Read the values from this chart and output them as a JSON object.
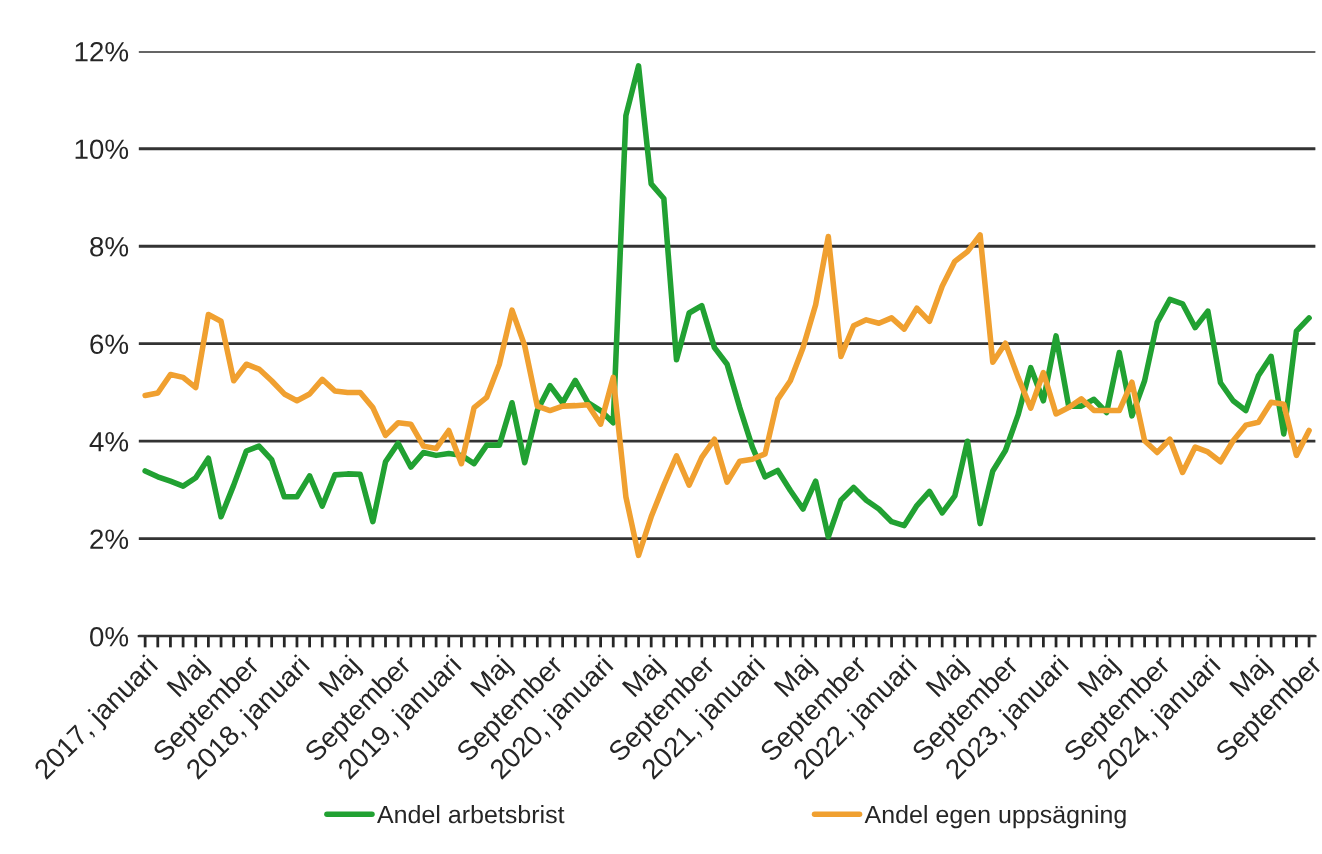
{
  "chart_data": {
    "type": "line",
    "categories": [
      "2017, januari",
      null,
      null,
      null,
      "Maj",
      null,
      null,
      null,
      "September",
      null,
      null,
      null,
      "2018, januari",
      null,
      null,
      null,
      "Maj",
      null,
      null,
      null,
      "September",
      null,
      null,
      null,
      "2019, januari",
      null,
      null,
      null,
      "Maj",
      null,
      null,
      null,
      "September",
      null,
      null,
      null,
      "2020, januari",
      null,
      null,
      null,
      "Maj",
      null,
      null,
      null,
      "September",
      null,
      null,
      null,
      "2021, januari",
      null,
      null,
      null,
      "Maj",
      null,
      null,
      null,
      "September",
      null,
      null,
      null,
      "2022, januari",
      null,
      null,
      null,
      "Maj",
      null,
      null,
      null,
      "September",
      null,
      null,
      null,
      "2023, januari",
      null,
      null,
      null,
      "Maj",
      null,
      null,
      null,
      "September",
      null,
      null,
      null,
      "2024, januari",
      null,
      null,
      null,
      "Maj",
      null,
      null,
      null,
      "September"
    ],
    "series": [
      {
        "name": "Andel arbetsbrist",
        "color": "#21a132",
        "values": [
          3.39,
          3.27,
          3.18,
          3.08,
          3.25,
          3.65,
          2.45,
          3.1,
          3.8,
          3.9,
          3.62,
          2.86,
          2.86,
          3.29,
          2.67,
          3.31,
          3.33,
          3.32,
          2.35,
          3.58,
          3.96,
          3.47,
          3.77,
          3.71,
          3.75,
          3.71,
          3.54,
          3.92,
          3.92,
          4.79,
          3.56,
          4.63,
          5.14,
          4.79,
          5.25,
          4.79,
          4.63,
          4.38,
          10.68,
          11.7,
          9.28,
          8.98,
          5.67,
          6.63,
          6.78,
          5.92,
          5.58,
          4.69,
          3.88,
          3.27,
          3.4,
          2.99,
          2.61,
          3.18,
          2.04,
          2.79,
          3.05,
          2.79,
          2.61,
          2.35,
          2.27,
          2.68,
          2.97,
          2.53,
          2.88,
          4.0,
          2.31,
          3.39,
          3.81,
          4.54,
          5.51,
          4.83,
          6.16,
          4.72,
          4.72,
          4.86,
          4.59,
          5.82,
          4.52,
          5.24,
          6.44,
          6.91,
          6.82,
          6.33,
          6.67,
          5.2,
          4.83,
          4.63,
          5.35,
          5.74,
          4.15,
          6.26,
          6.53
        ]
      },
      {
        "name": "Andel egen uppsägning",
        "color": "#f0a030",
        "values": [
          4.94,
          4.99,
          5.37,
          5.31,
          5.1,
          6.6,
          6.46,
          5.24,
          5.58,
          5.48,
          5.24,
          4.97,
          4.83,
          4.97,
          5.27,
          5.03,
          5.0,
          5.0,
          4.69,
          4.12,
          4.38,
          4.35,
          3.9,
          3.85,
          4.22,
          3.54,
          4.69,
          4.9,
          5.58,
          6.69,
          5.96,
          4.72,
          4.63,
          4.72,
          4.73,
          4.75,
          4.35,
          5.31,
          2.86,
          1.66,
          2.45,
          3.1,
          3.7,
          3.1,
          3.67,
          4.04,
          3.16,
          3.59,
          3.63,
          3.74,
          4.86,
          5.24,
          5.92,
          6.8,
          8.2,
          5.74,
          6.37,
          6.49,
          6.42,
          6.53,
          6.3,
          6.73,
          6.46,
          7.18,
          7.69,
          7.89,
          8.23,
          5.62,
          6.01,
          5.31,
          4.68,
          5.41,
          4.56,
          4.69,
          4.87,
          4.63,
          4.63,
          4.63,
          5.21,
          4.01,
          3.77,
          4.04,
          3.36,
          3.88,
          3.78,
          3.58,
          4.01,
          4.33,
          4.39,
          4.8,
          4.76,
          3.71,
          4.22
        ]
      }
    ],
    "ylim": [
      0,
      12
    ],
    "yticks": [
      {
        "value": 0,
        "label": "0%"
      },
      {
        "value": 2,
        "label": "2%"
      },
      {
        "value": 4,
        "label": "4%"
      },
      {
        "value": 6,
        "label": "6%"
      },
      {
        "value": 8,
        "label": "8%"
      },
      {
        "value": 10,
        "label": "10%"
      },
      {
        "value": 12,
        "label": "12%"
      }
    ],
    "grid": "y",
    "legend": "bottom",
    "line_style": "solid",
    "marker": "none"
  }
}
